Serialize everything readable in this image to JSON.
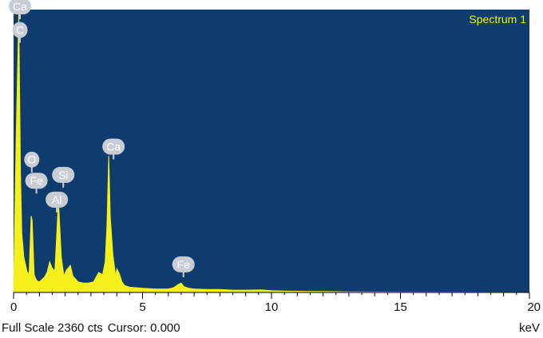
{
  "chart_data": {
    "type": "line",
    "title": "Spectrum 1",
    "xlabel": "keV",
    "xlim": [
      0,
      20
    ],
    "ylim": [
      0,
      2360
    ],
    "x_ticks": [
      0,
      5,
      10,
      15,
      20
    ],
    "x_tick_labels": [
      "0",
      "5",
      "10",
      "15",
      "20"
    ],
    "series": [
      {
        "x": [
          0.0,
          0.1,
          0.2,
          0.27,
          0.32,
          0.4,
          0.52,
          0.6,
          0.68,
          0.72,
          0.8,
          0.9,
          1.0,
          1.1,
          1.2,
          1.3,
          1.4,
          1.49,
          1.6,
          1.74,
          1.85,
          1.95,
          2.05,
          2.2,
          2.3,
          2.5,
          2.7,
          2.9,
          3.1,
          3.3,
          3.45,
          3.55,
          3.62,
          3.69,
          3.75,
          3.85,
          3.95,
          4.01,
          4.1,
          4.2,
          4.3,
          4.5,
          5.0,
          5.5,
          6.0,
          6.2,
          6.4,
          6.5,
          6.6,
          6.8,
          7.0,
          7.5,
          8.0,
          8.5,
          9.0,
          9.6,
          10.0,
          10.5,
          11.0,
          12.0,
          13.0,
          15.0,
          20.0
        ],
        "y": [
          0,
          1300,
          2360,
          1000,
          500,
          300,
          180,
          150,
          650,
          610,
          150,
          100,
          90,
          110,
          130,
          170,
          260,
          210,
          180,
          780,
          300,
          140,
          190,
          230,
          140,
          90,
          80,
          80,
          90,
          170,
          150,
          260,
          560,
          1160,
          640,
          320,
          150,
          200,
          160,
          90,
          60,
          45,
          35,
          30,
          30,
          40,
          70,
          80,
          50,
          35,
          30,
          25,
          25,
          20,
          20,
          22,
          15,
          12,
          10,
          8,
          5,
          3,
          0
        ]
      }
    ],
    "annotations": [
      {
        "text": "Ca",
        "x": 0.0,
        "y": 2360
      },
      {
        "text": "C",
        "x": 0.0,
        "y": 2160
      },
      {
        "text": "O",
        "x": 0.52,
        "y": 1060
      },
      {
        "text": "Fe",
        "x": 0.7,
        "y": 880
      },
      {
        "text": "Si",
        "x": 1.74,
        "y": 930
      },
      {
        "text": "Al",
        "x": 1.49,
        "y": 720
      },
      {
        "text": "Ca",
        "x": 3.69,
        "y": 1170
      },
      {
        "text": "Fe",
        "x": 6.4,
        "y": 170
      }
    ]
  },
  "status": {
    "full_scale": "Full Scale 2360 cts",
    "cursor": "Cursor: 0.000",
    "unit": "keV"
  },
  "colors": {
    "plot_background": "#0e3c6e",
    "spectrum": "#f5ef1c",
    "title": "#f5ef1c",
    "label_bubble": "#c8ccd4",
    "label_text": "#ffffff",
    "axis": "#000000"
  }
}
